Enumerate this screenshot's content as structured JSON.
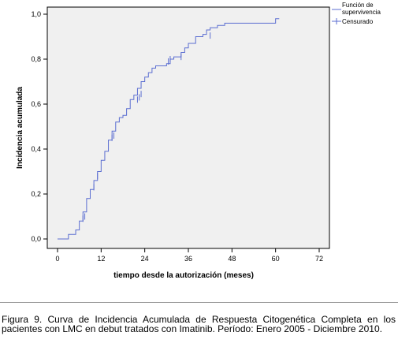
{
  "chart_data": {
    "type": "line",
    "step": true,
    "ylabel": "Incidencia acumulada",
    "xlabel": "tiempo desde la autorización (meses)",
    "xlim": [
      0,
      72
    ],
    "ylim": [
      0,
      1
    ],
    "x_ticks": [
      0,
      12,
      24,
      36,
      48,
      60,
      72
    ],
    "x_tick_labels": [
      "0",
      "12",
      "24",
      "36",
      "48",
      "60",
      "72"
    ],
    "y_ticks": [
      0,
      0.2,
      0.4,
      0.6,
      0.8,
      1.0
    ],
    "y_tick_labels": [
      "0,0",
      "0,2",
      "0,4",
      "0,6",
      "0,8",
      "1,0"
    ],
    "grid": false,
    "legend_position": "top-right",
    "colors": {
      "line": "#5b6ed1",
      "plot_bg": "#f0f0f0",
      "frame": "#000000"
    },
    "series": [
      {
        "name": "Función de supervivencia",
        "x": [
          0,
          3,
          5,
          6,
          7,
          8,
          9,
          10,
          11,
          12,
          13,
          14,
          15,
          16,
          17,
          18,
          19,
          20,
          21,
          22,
          23,
          24,
          25,
          26,
          27,
          28,
          30,
          31,
          32,
          33,
          34,
          35,
          36,
          38,
          40,
          41,
          42,
          44,
          46,
          48,
          51,
          55,
          60,
          61
        ],
        "y": [
          0,
          0.02,
          0.04,
          0.08,
          0.12,
          0.18,
          0.22,
          0.26,
          0.3,
          0.35,
          0.39,
          0.44,
          0.48,
          0.52,
          0.54,
          0.55,
          0.58,
          0.62,
          0.64,
          0.67,
          0.7,
          0.72,
          0.74,
          0.76,
          0.77,
          0.77,
          0.78,
          0.8,
          0.81,
          0.81,
          0.83,
          0.85,
          0.87,
          0.9,
          0.91,
          0.93,
          0.94,
          0.95,
          0.96,
          0.96,
          0.96,
          0.96,
          0.98,
          0.98
        ]
      }
    ],
    "censored": {
      "name": "Censurado",
      "x": [
        7,
        7.5,
        10,
        11,
        15,
        15.5,
        22,
        22.5,
        23,
        30.5,
        31,
        34,
        42
      ],
      "y": [
        0.09,
        0.1,
        0.23,
        0.28,
        0.45,
        0.46,
        0.62,
        0.63,
        0.645,
        0.79,
        0.8,
        0.81,
        0.905
      ]
    },
    "legend": {
      "items": [
        {
          "label_line1": "Función de",
          "label_line2": "supervivencia",
          "marker": "line"
        },
        {
          "label_line1": "Censurado",
          "label_line2": "",
          "marker": "plus"
        }
      ]
    }
  },
  "caption": "Figura 9. Curva de Incidencia Acumulada de Respuesta Citogenética Completa en los pacientes con LMC en debut tratados con Imatinib. Período: Enero 2005 - Diciembre 2010."
}
